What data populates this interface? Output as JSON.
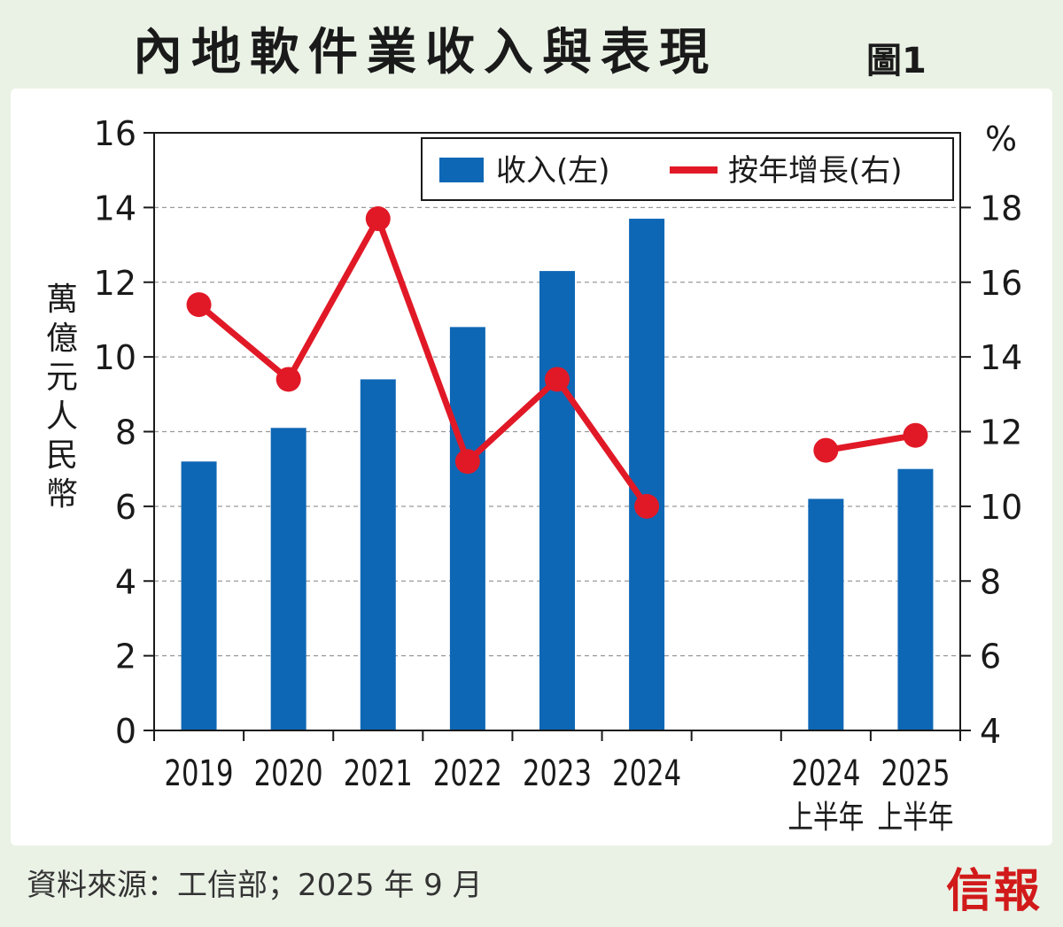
{
  "title": "內地軟件業收入與表現",
  "figure_label": "圖1",
  "source": "資料來源：工信部；2025 年 9 月",
  "logo_text": "信報",
  "colors": {
    "background": "#eaf2e6",
    "bar": "#0e67b5",
    "line": "#e11927",
    "grid": "#9a9a9a"
  },
  "chart_data": {
    "type": "bar",
    "categories": [
      {
        "label": "2019",
        "sub": ""
      },
      {
        "label": "2020",
        "sub": ""
      },
      {
        "label": "2021",
        "sub": ""
      },
      {
        "label": "2022",
        "sub": ""
      },
      {
        "label": "2023",
        "sub": ""
      },
      {
        "label": "2024",
        "sub": ""
      },
      {
        "label": "",
        "sub": ""
      },
      {
        "label": "2024",
        "sub": "上半年"
      },
      {
        "label": "2025",
        "sub": "上半年"
      }
    ],
    "series": [
      {
        "name": "收入(左)",
        "type": "bar",
        "axis": "left",
        "values": [
          7.2,
          8.1,
          9.4,
          10.8,
          12.3,
          13.7,
          null,
          6.2,
          7.0
        ]
      },
      {
        "name": "按年增長(右)",
        "type": "line",
        "axis": "right",
        "values": [
          15.4,
          13.4,
          17.7,
          11.2,
          13.4,
          10.0,
          null,
          11.5,
          11.9
        ]
      }
    ],
    "ylabel": "萬億元人民幣",
    "ylim": [
      0,
      16
    ],
    "yticks": [
      0,
      2,
      4,
      6,
      8,
      10,
      12,
      14,
      16
    ],
    "y2label": "%",
    "y2lim": [
      4,
      20
    ],
    "y2ticks": [
      4,
      6,
      8,
      10,
      12,
      14,
      16,
      18
    ],
    "grid": true,
    "legend": "top-right"
  }
}
